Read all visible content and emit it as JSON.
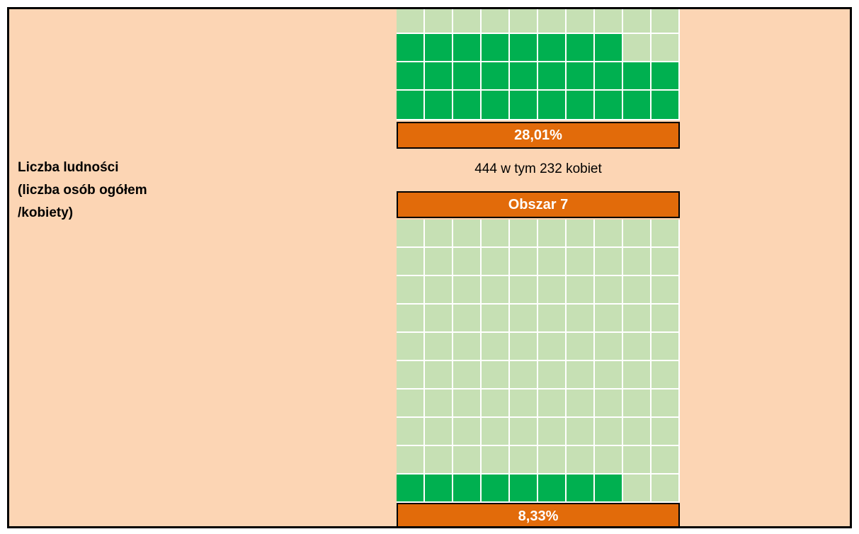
{
  "label_lines": [
    "Liczba ludności",
    "(liczba osób ogółem",
    "/kobiety)"
  ],
  "top_percent": "28,01%",
  "caption": "444 w tym 232 kobiet",
  "area_label": "Obszar 7",
  "bottom_percent": "8,33%"
}
